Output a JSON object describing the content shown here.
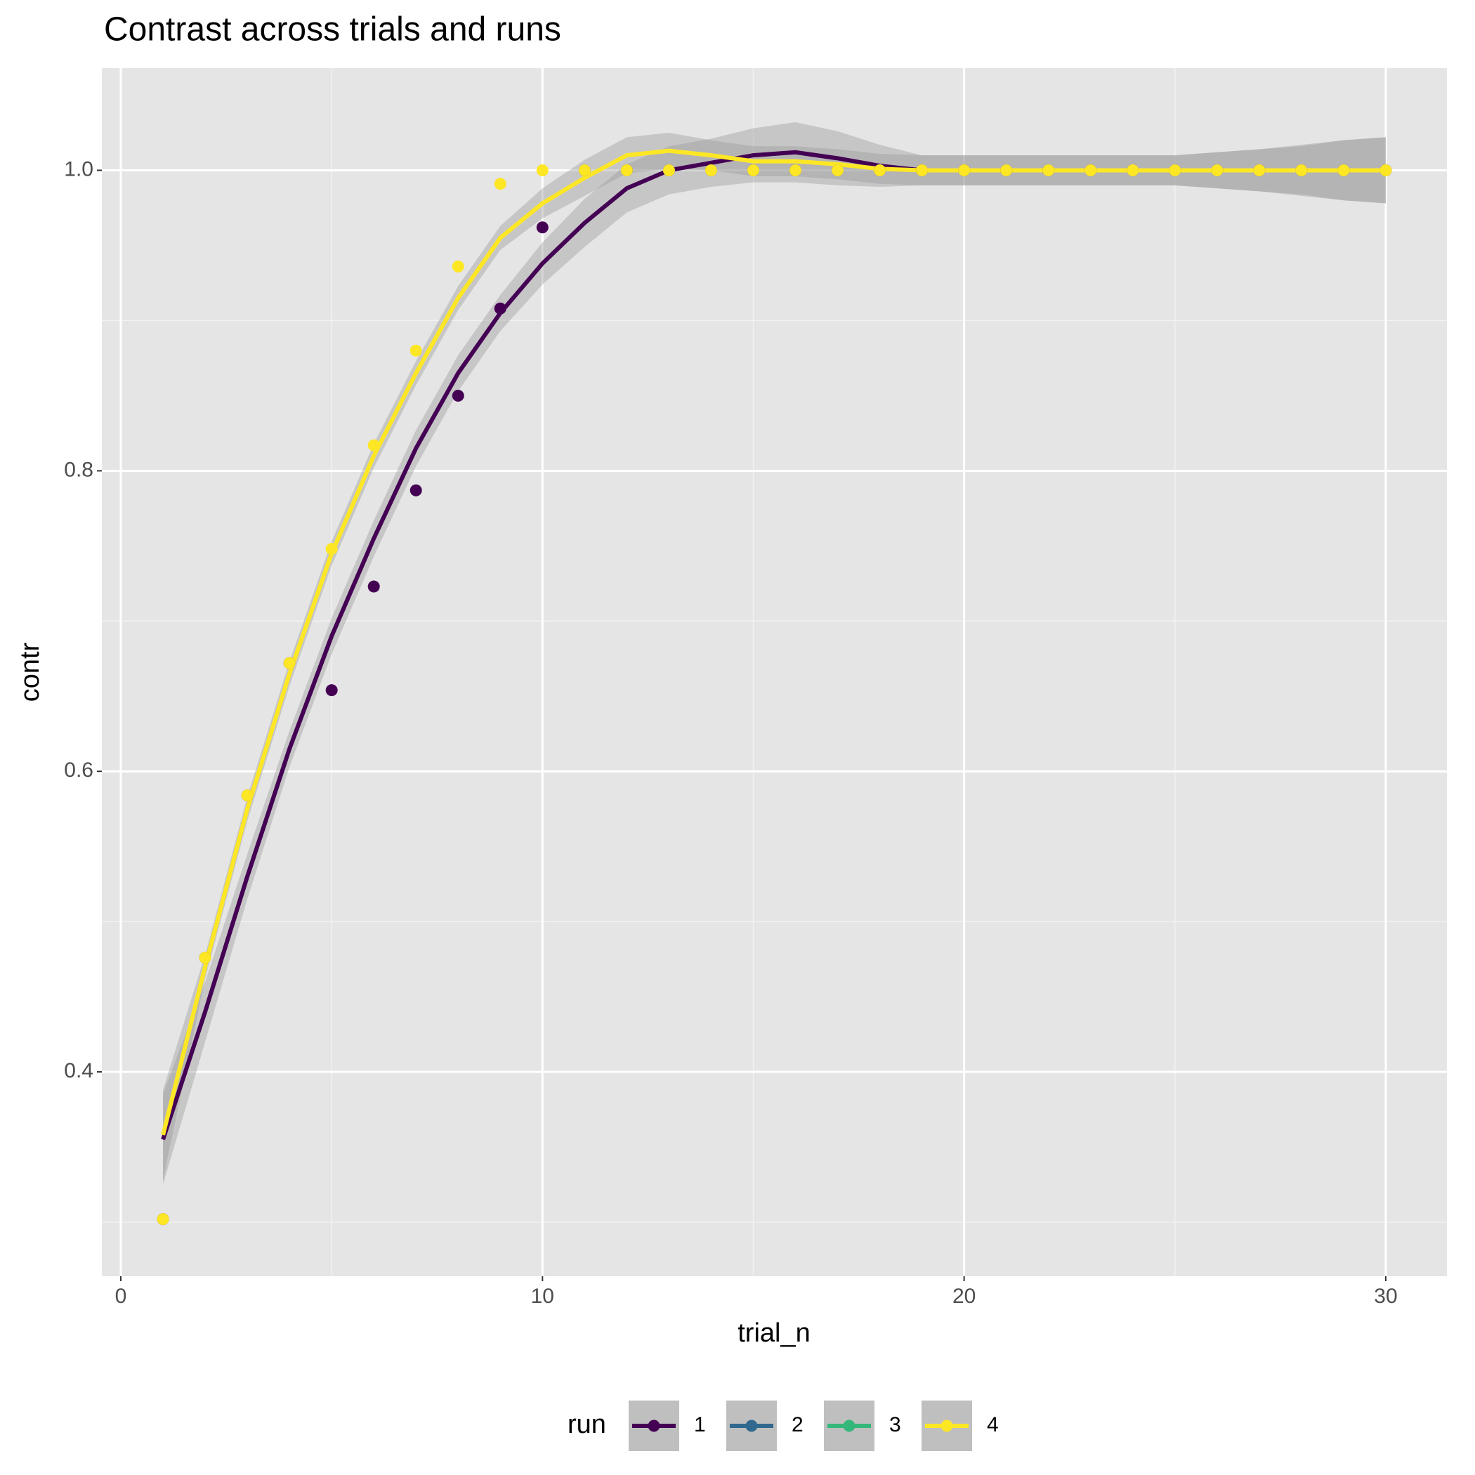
{
  "chart_data": {
    "type": "scatter-smooth",
    "title": "Contrast across trials and runs",
    "x_label": "trial_n",
    "y_label": "contr",
    "legend_title": "run",
    "x": [
      1,
      2,
      3,
      4,
      5,
      6,
      7,
      8,
      9,
      10,
      11,
      12,
      13,
      14,
      15,
      16,
      17,
      18,
      19,
      20,
      21,
      22,
      23,
      24,
      25,
      26,
      27,
      28,
      29,
      30
    ],
    "xlim": [
      -0.45,
      31.45
    ],
    "xticks": [
      0,
      10,
      20,
      30
    ],
    "x_minor_ticks": [
      5,
      15,
      25
    ],
    "ylim": [
      0.264,
      1.068
    ],
    "yticks": [
      {
        "value": 0.4,
        "label": "0.4"
      },
      {
        "value": 0.6,
        "label": "0.6"
      },
      {
        "value": 0.8,
        "label": "0.8"
      },
      {
        "value": 1.0,
        "label": "1.0"
      }
    ],
    "y_minor_ticks": [
      0.3,
      0.5,
      0.7,
      0.9
    ],
    "grid": true,
    "legend_position": "bottom",
    "series": [
      {
        "name": "1",
        "color": "#440154",
        "values": [
          0.302,
          0.476,
          0.584,
          0.672,
          0.654,
          0.723,
          0.787,
          0.85,
          0.908,
          0.962,
          1,
          1,
          1,
          1,
          1,
          1,
          1,
          1,
          1,
          1,
          1,
          1,
          1,
          1,
          1,
          1,
          1,
          1,
          1,
          1
        ],
        "smooth": [
          0.355,
          0.44,
          0.53,
          0.615,
          0.69,
          0.755,
          0.815,
          0.865,
          0.905,
          0.938,
          0.965,
          0.988,
          1.0,
          1.005,
          1.01,
          1.012,
          1.008,
          1.003,
          1,
          1,
          1,
          1,
          1,
          1,
          1,
          1,
          1,
          1,
          1,
          1
        ],
        "smooth_se": [
          0.03,
          0.02,
          0.015,
          0.012,
          0.012,
          0.012,
          0.012,
          0.012,
          0.012,
          0.014,
          0.016,
          0.016,
          0.016,
          0.016,
          0.018,
          0.02,
          0.018,
          0.014,
          0.01,
          0.01,
          0.01,
          0.01,
          0.01,
          0.01,
          0.01,
          0.012,
          0.014,
          0.017,
          0.02,
          0.022
        ]
      },
      {
        "name": "2",
        "color": "#31688e",
        "values": [
          null,
          null,
          null,
          null,
          null,
          null,
          null,
          null,
          null,
          null,
          null,
          null,
          null,
          null,
          null,
          null,
          null,
          null,
          null,
          null,
          null,
          null,
          null,
          null,
          null,
          null,
          null,
          null,
          null,
          null
        ]
      },
      {
        "name": "3",
        "color": "#35b779",
        "values": [
          null,
          null,
          null,
          null,
          null,
          null,
          null,
          null,
          null,
          null,
          null,
          null,
          null,
          null,
          null,
          null,
          null,
          null,
          null,
          null,
          null,
          null,
          null,
          null,
          null,
          null,
          null,
          null,
          null,
          null
        ]
      },
      {
        "name": "4",
        "color": "#fde725",
        "values": [
          0.302,
          0.476,
          0.584,
          0.672,
          0.748,
          0.817,
          0.88,
          0.936,
          0.991,
          1,
          1,
          1,
          1,
          1,
          1,
          1,
          1,
          1,
          1,
          1,
          1,
          1,
          1,
          1,
          1,
          1,
          1,
          1,
          1,
          1
        ],
        "smooth": [
          0.358,
          0.47,
          0.575,
          0.665,
          0.745,
          0.81,
          0.865,
          0.915,
          0.955,
          0.978,
          0.995,
          1.01,
          1.013,
          1.01,
          1.006,
          1.006,
          1.004,
          1.001,
          1,
          1,
          1,
          1,
          1,
          1,
          1,
          1,
          1,
          1,
          1,
          1
        ],
        "smooth_se": [
          0.03,
          0.008,
          0.008,
          0.008,
          0.008,
          0.008,
          0.008,
          0.008,
          0.008,
          0.01,
          0.012,
          0.012,
          0.012,
          0.01,
          0.01,
          0.01,
          0.01,
          0.01,
          0.01,
          0.01,
          0.01,
          0.01,
          0.01,
          0.01,
          0.01,
          0.012,
          0.014,
          0.016,
          0.02,
          0.022
        ]
      }
    ]
  }
}
